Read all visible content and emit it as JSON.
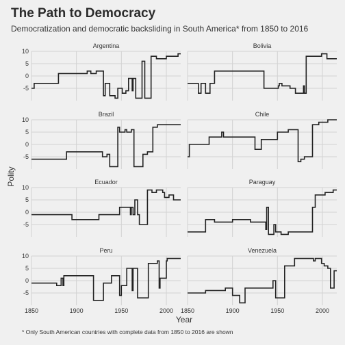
{
  "title": "The Path to Democracy",
  "subtitle": "Democratization and democratic backsliding in South America* from 1850 to 2016",
  "caption": "* Only South American countries with complete data from 1850 to 2016 are shown",
  "colors": {
    "background": "#f0f0f0",
    "line": "#222222",
    "grid": "#d2d2d2",
    "text": "#333333"
  },
  "chart_data": {
    "type": "line",
    "layout": "small-multiples 4x2",
    "xlabel": "Year",
    "ylabel": "Polity",
    "x_ticks": [
      1850,
      1900,
      1950,
      2000
    ],
    "y_ticks": [
      10,
      5,
      0,
      -5
    ],
    "xlim": [
      1850,
      2016
    ],
    "ylim": [
      -10,
      10
    ],
    "grid": true,
    "legend": "none",
    "panels": [
      {
        "name": "Argentina",
        "x": [
          1850,
          1853,
          1853,
          1880,
          1880,
          1912,
          1912,
          1916,
          1916,
          1922,
          1922,
          1930,
          1930,
          1932,
          1932,
          1937,
          1937,
          1943,
          1943,
          1946,
          1946,
          1951,
          1951,
          1955,
          1955,
          1958,
          1958,
          1962,
          1962,
          1963,
          1963,
          1966,
          1966,
          1973,
          1973,
          1976,
          1976,
          1983,
          1983,
          1989,
          1989,
          2000,
          2000,
          2013,
          2013,
          2016
        ],
        "y": [
          -5,
          -5,
          -3,
          -3,
          1,
          1,
          2,
          2,
          1,
          1,
          2,
          2,
          -8,
          -8,
          -3,
          -3,
          -8,
          -8,
          -9,
          -9,
          -5,
          -5,
          -7,
          -7,
          -6,
          -6,
          -1,
          -1,
          -6,
          -6,
          -1,
          -1,
          -9,
          -9,
          6,
          6,
          -9,
          -9,
          8,
          8,
          7,
          7,
          8,
          8,
          9,
          9
        ]
      },
      {
        "name": "Bolivia",
        "x": [
          1850,
          1862,
          1862,
          1865,
          1865,
          1870,
          1870,
          1875,
          1875,
          1880,
          1880,
          1935,
          1935,
          1940,
          1940,
          1951,
          1951,
          1952,
          1952,
          1955,
          1955,
          1964,
          1964,
          1970,
          1970,
          1979,
          1979,
          1980,
          1980,
          1982,
          1982,
          1999,
          1999,
          2005,
          2005,
          2016
        ],
        "y": [
          -3,
          -3,
          -7,
          -7,
          -3,
          -3,
          -7,
          -7,
          -3,
          -3,
          2,
          2,
          -5,
          -5,
          -5,
          -5,
          -4,
          -4,
          -3,
          -3,
          -4,
          -4,
          -5,
          -5,
          -7,
          -7,
          -4,
          -4,
          -7,
          -7,
          8,
          8,
          9,
          9,
          7,
          7
        ]
      },
      {
        "name": "Brazil",
        "x": [
          1850,
          1889,
          1889,
          1929,
          1929,
          1934,
          1934,
          1937,
          1937,
          1946,
          1946,
          1948,
          1948,
          1954,
          1954,
          1956,
          1956,
          1961,
          1961,
          1964,
          1964,
          1974,
          1974,
          1979,
          1979,
          1985,
          1985,
          1990,
          1990,
          2016
        ],
        "y": [
          -6,
          -6,
          -3,
          -3,
          -5,
          -5,
          -4,
          -4,
          -9,
          -9,
          7,
          7,
          5,
          5,
          6,
          6,
          5,
          5,
          6,
          6,
          -9,
          -9,
          -4,
          -4,
          -3,
          -3,
          7,
          7,
          8,
          8
        ]
      },
      {
        "name": "Chile",
        "x": [
          1850,
          1852,
          1852,
          1874,
          1874,
          1888,
          1888,
          1890,
          1890,
          1925,
          1925,
          1932,
          1932,
          1938,
          1938,
          1950,
          1950,
          1962,
          1962,
          1964,
          1964,
          1973,
          1973,
          1976,
          1976,
          1980,
          1980,
          1989,
          1989,
          1990,
          1990,
          1996,
          1996,
          2006,
          2006,
          2016
        ],
        "y": [
          -5,
          -5,
          0,
          0,
          3,
          3,
          5,
          5,
          3,
          3,
          -2,
          -2,
          2,
          2,
          2,
          2,
          5,
          5,
          6,
          6,
          6,
          6,
          -7,
          -7,
          -6,
          -6,
          -5,
          -5,
          8,
          8,
          8,
          8,
          9,
          9,
          10,
          10
        ]
      },
      {
        "name": "Ecuador",
        "x": [
          1850,
          1895,
          1895,
          1916,
          1916,
          1925,
          1925,
          1948,
          1948,
          1960,
          1960,
          1961,
          1961,
          1963,
          1963,
          1965,
          1965,
          1968,
          1968,
          1970,
          1970,
          1972,
          1972,
          1979,
          1979,
          1984,
          1984,
          1989,
          1989,
          1996,
          1996,
          1998,
          1998,
          2003,
          2003,
          2008,
          2008,
          2016
        ],
        "y": [
          -1,
          -1,
          -3,
          -3,
          -3,
          -3,
          -1,
          -1,
          2,
          2,
          -1,
          -1,
          2,
          2,
          -1,
          -1,
          5,
          5,
          -1,
          -1,
          -5,
          -5,
          -5,
          -5,
          9,
          9,
          8,
          8,
          9,
          9,
          8,
          8,
          6,
          6,
          7,
          7,
          5,
          5
        ]
      },
      {
        "name": "Paraguay",
        "x": [
          1850,
          1870,
          1870,
          1880,
          1880,
          1900,
          1900,
          1920,
          1920,
          1928,
          1928,
          1930,
          1930,
          1937,
          1937,
          1938,
          1938,
          1940,
          1940,
          1946,
          1946,
          1948,
          1948,
          1954,
          1954,
          1962,
          1962,
          1989,
          1989,
          1992,
          1992,
          1993,
          1993,
          2003,
          2003,
          2012,
          2012,
          2016
        ],
        "y": [
          -8,
          -8,
          -3,
          -3,
          -4,
          -4,
          -3,
          -3,
          -4,
          -4,
          -4,
          -4,
          -4,
          -4,
          -7,
          -7,
          2,
          2,
          -9,
          -9,
          -5,
          -5,
          -8,
          -8,
          -9,
          -9,
          -8,
          -8,
          2,
          2,
          7,
          7,
          7,
          7,
          8,
          8,
          9,
          9
        ]
      },
      {
        "name": "Peru",
        "x": [
          1850,
          1878,
          1878,
          1880,
          1880,
          1883,
          1883,
          1885,
          1885,
          1886,
          1886,
          1919,
          1919,
          1930,
          1930,
          1939,
          1939,
          1945,
          1945,
          1948,
          1948,
          1950,
          1950,
          1956,
          1956,
          1962,
          1962,
          1963,
          1963,
          1968,
          1968,
          1980,
          1980,
          1990,
          1990,
          1992,
          1992,
          1993,
          1993,
          2000,
          2000,
          2001,
          2001,
          2016
        ],
        "y": [
          -1,
          -1,
          -2,
          -2,
          -2,
          -2,
          1,
          1,
          -2,
          -2,
          2,
          2,
          -8,
          -8,
          -1,
          -1,
          2,
          2,
          2,
          2,
          -6,
          -6,
          -2,
          -2,
          5,
          5,
          -4,
          -4,
          5,
          5,
          -7,
          -7,
          7,
          7,
          8,
          8,
          -3,
          -3,
          1,
          1,
          8,
          8,
          9,
          9
        ]
      },
      {
        "name": "Venezuela",
        "x": [
          1850,
          1870,
          1870,
          1892,
          1892,
          1900,
          1900,
          1908,
          1908,
          1914,
          1914,
          1935,
          1935,
          1945,
          1945,
          1948,
          1948,
          1958,
          1958,
          1959,
          1959,
          1969,
          1969,
          1990,
          1990,
          1992,
          1992,
          1999,
          1999,
          2002,
          2002,
          2006,
          2006,
          2009,
          2009,
          2013,
          2013,
          2016
        ],
        "y": [
          -5,
          -5,
          -4,
          -4,
          -3,
          -3,
          -6,
          -6,
          -9,
          -9,
          -3,
          -3,
          -3,
          -3,
          0,
          0,
          -7,
          -7,
          6,
          6,
          6,
          6,
          9,
          9,
          8,
          8,
          9,
          9,
          7,
          7,
          6,
          6,
          5,
          5,
          -3,
          -3,
          4,
          4
        ]
      }
    ]
  }
}
